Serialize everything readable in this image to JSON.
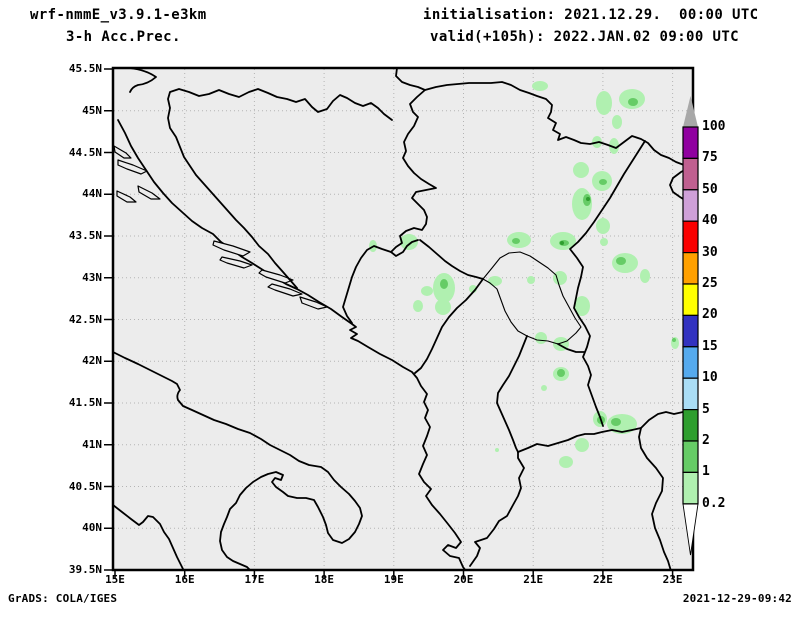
{
  "header": {
    "model": "wrf-nmmE_v3.9.1-e3km",
    "variable": "3-h Acc.Prec.",
    "init_label": "initialisation: 2021.12.29.  00:00 UTC",
    "valid_label": "valid(+105h): 2022.JAN.02 09:00 UTC"
  },
  "footer": {
    "credit": "GrADS: COLA/IGES",
    "timestamp": "2021-12-29-09:42"
  },
  "axes": {
    "lat_labels": [
      "45.5N",
      "45N",
      "44.5N",
      "44N",
      "43.5N",
      "43N",
      "42.5N",
      "42N",
      "41.5N",
      "41N",
      "40.5N",
      "40N",
      "39.5N"
    ],
    "lon_labels": [
      "15E",
      "16E",
      "17E",
      "18E",
      "19E",
      "20E",
      "21E",
      "22E",
      "23E"
    ],
    "lat_range": [
      39.5,
      45.5
    ],
    "lon_range": [
      15,
      23.3
    ],
    "grid": "dotted"
  },
  "colorbar": {
    "levels": [
      "100",
      "75",
      "50",
      "40",
      "30",
      "25",
      "20",
      "15",
      "10",
      "5",
      "2",
      "1",
      "0.2"
    ],
    "colors": [
      "#9000a0",
      "#c06090",
      "#cfa0d8",
      "#fa0000",
      "#ffa000",
      "#ffff00",
      "#3232c0",
      "#55aaee",
      "#aaddf5",
      "#2e9e2e",
      "#66cc66",
      "#b0f0b0"
    ],
    "overflow_color": "#a8a8a8",
    "underflow_color": "#ffffff"
  },
  "map": {
    "background": "#ececec",
    "line_color": "#000000",
    "precip_colors": {
      "light": "#b0f0b0",
      "medium": "#66cc66",
      "dark": "#2e9e2e"
    },
    "precip_summary": "Scattered light precipitation (0.2-2 mm) over eastern Serbia, Kosovo, Montenegro and the Macedonia-Bulgaria border region"
  }
}
